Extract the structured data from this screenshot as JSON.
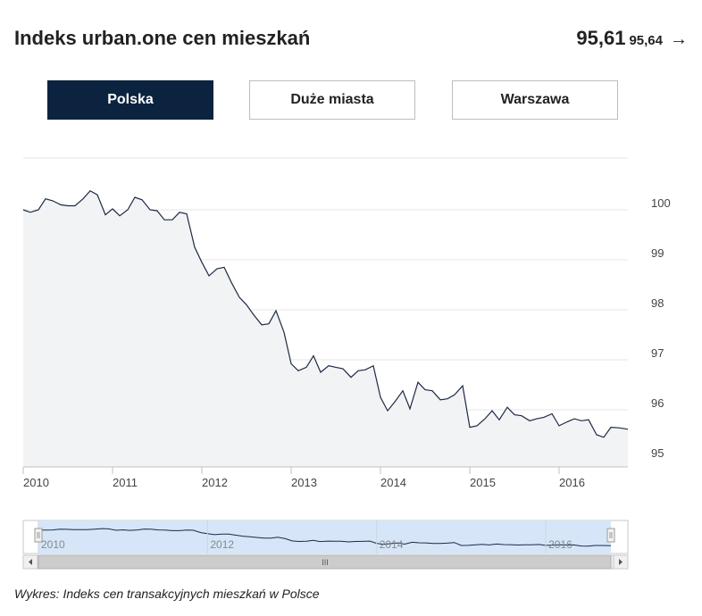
{
  "header": {
    "title": "Indeks urban.one cen mieszkań",
    "value_main": "95,61",
    "value_secondary": "95,64",
    "arrow": "→"
  },
  "tabs": [
    {
      "label": "Polska",
      "active": true
    },
    {
      "label": "Duże miasta",
      "active": false
    },
    {
      "label": "Warszawa",
      "active": false
    }
  ],
  "caption": "Wykres: Indeks cen transakcyjnych mieszkań w Polsce",
  "navigator": {
    "tick_labels": [
      "2010",
      "2012",
      "2014",
      "2016"
    ],
    "scroll_grip": "III"
  },
  "colors": {
    "line": "#1c2a44",
    "area": "#f2f3f4",
    "active_tab": "#0c2340",
    "navigator_fill": "#d6e6f8",
    "grid": "#e4e4e4"
  },
  "chart_data": {
    "type": "area",
    "title": "",
    "xlabel": "",
    "ylabel": "",
    "x_ticks": [
      "2010",
      "2011",
      "2012",
      "2013",
      "2014",
      "2015",
      "2016"
    ],
    "y_ticks": [
      "95",
      "96",
      "97",
      "98",
      "99",
      "100"
    ],
    "ylim": [
      95,
      101
    ],
    "xlim": [
      2010.0,
      2016.77
    ],
    "grid": true,
    "legend": "none",
    "series": [
      {
        "x": [
          2010.0,
          2010.08,
          2010.17,
          2010.25,
          2010.33,
          2010.42,
          2010.5,
          2010.58,
          2010.67,
          2010.75,
          2010.83,
          2010.92,
          2011.0,
          2011.08,
          2011.17,
          2011.25,
          2011.33,
          2011.42,
          2011.5,
          2011.58,
          2011.67,
          2011.75,
          2011.83,
          2011.92,
          2012.0,
          2012.08,
          2012.17,
          2012.25,
          2012.33,
          2012.42,
          2012.5,
          2012.58,
          2012.67,
          2012.75,
          2012.83,
          2012.92,
          2013.0,
          2013.08,
          2013.17,
          2013.25,
          2013.33,
          2013.42,
          2013.5,
          2013.58,
          2013.67,
          2013.75,
          2013.83,
          2013.92,
          2014.0,
          2014.08,
          2014.17,
          2014.25,
          2014.33,
          2014.42,
          2014.5,
          2014.58,
          2014.67,
          2014.75,
          2014.83,
          2014.92,
          2015.0,
          2015.08,
          2015.17,
          2015.25,
          2015.33,
          2015.42,
          2015.5,
          2015.58,
          2015.67,
          2015.75,
          2015.83,
          2015.92,
          2016.0,
          2016.08,
          2016.17,
          2016.25,
          2016.33,
          2016.42,
          2016.5,
          2016.58,
          2016.67,
          2016.77
        ],
        "values": [
          100.0,
          99.95,
          100.0,
          100.22,
          100.18,
          100.1,
          100.08,
          100.08,
          100.22,
          100.38,
          100.3,
          99.9,
          100.02,
          99.88,
          100.0,
          100.25,
          100.2,
          100.0,
          99.98,
          99.8,
          99.8,
          99.95,
          99.92,
          99.25,
          98.95,
          98.68,
          98.82,
          98.85,
          98.55,
          98.25,
          98.1,
          97.9,
          97.7,
          97.72,
          97.98,
          97.55,
          96.92,
          96.78,
          96.85,
          97.08,
          96.75,
          96.88,
          96.85,
          96.82,
          96.65,
          96.78,
          96.8,
          96.88,
          96.25,
          95.98,
          96.18,
          96.38,
          96.02,
          96.55,
          96.4,
          96.38,
          96.2,
          96.22,
          96.3,
          96.48,
          95.65,
          95.68,
          95.82,
          95.98,
          95.8,
          96.05,
          95.9,
          95.88,
          95.78,
          95.82,
          95.85,
          95.92,
          95.68,
          95.75,
          95.82,
          95.78,
          95.8,
          95.5,
          95.45,
          95.65,
          95.64,
          95.61
        ]
      }
    ]
  }
}
